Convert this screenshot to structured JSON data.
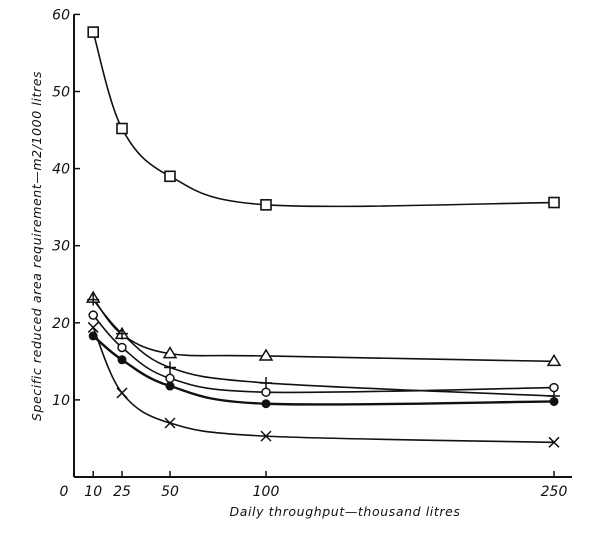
{
  "chart_data": {
    "type": "line",
    "title": "",
    "xlabel": "Daily throughput—thousand litres",
    "ylabel": "Specific reduced area requirement—m2/1000 litres",
    "x": [
      10,
      25,
      50,
      100,
      250
    ],
    "x_ticks": [
      "0",
      "10",
      "25",
      "50",
      "100",
      "250"
    ],
    "y_ticks": [
      "10",
      "20",
      "30",
      "40",
      "50",
      "60"
    ],
    "xlim": [
      0,
      250
    ],
    "ylim": [
      0,
      60
    ],
    "grid": false,
    "legend": "none",
    "line_color": "#111111",
    "series": [
      {
        "marker": "open-square",
        "values": [
          57.7,
          45.2,
          39.0,
          35.3,
          35.6
        ]
      },
      {
        "marker": "open-triangle",
        "values": [
          23.2,
          18.5,
          16.0,
          15.7,
          15.0
        ]
      },
      {
        "marker": "plus",
        "values": [
          23.0,
          18.6,
          14.2,
          12.2,
          10.5
        ]
      },
      {
        "marker": "open-circle",
        "values": [
          21.0,
          16.8,
          12.8,
          11.0,
          11.6
        ]
      },
      {
        "marker": "filled-circle",
        "values": [
          18.3,
          15.2,
          11.8,
          9.5,
          9.8
        ]
      },
      {
        "marker": "cross",
        "values": [
          19.4,
          10.9,
          7.0,
          5.3,
          4.5
        ]
      }
    ]
  }
}
